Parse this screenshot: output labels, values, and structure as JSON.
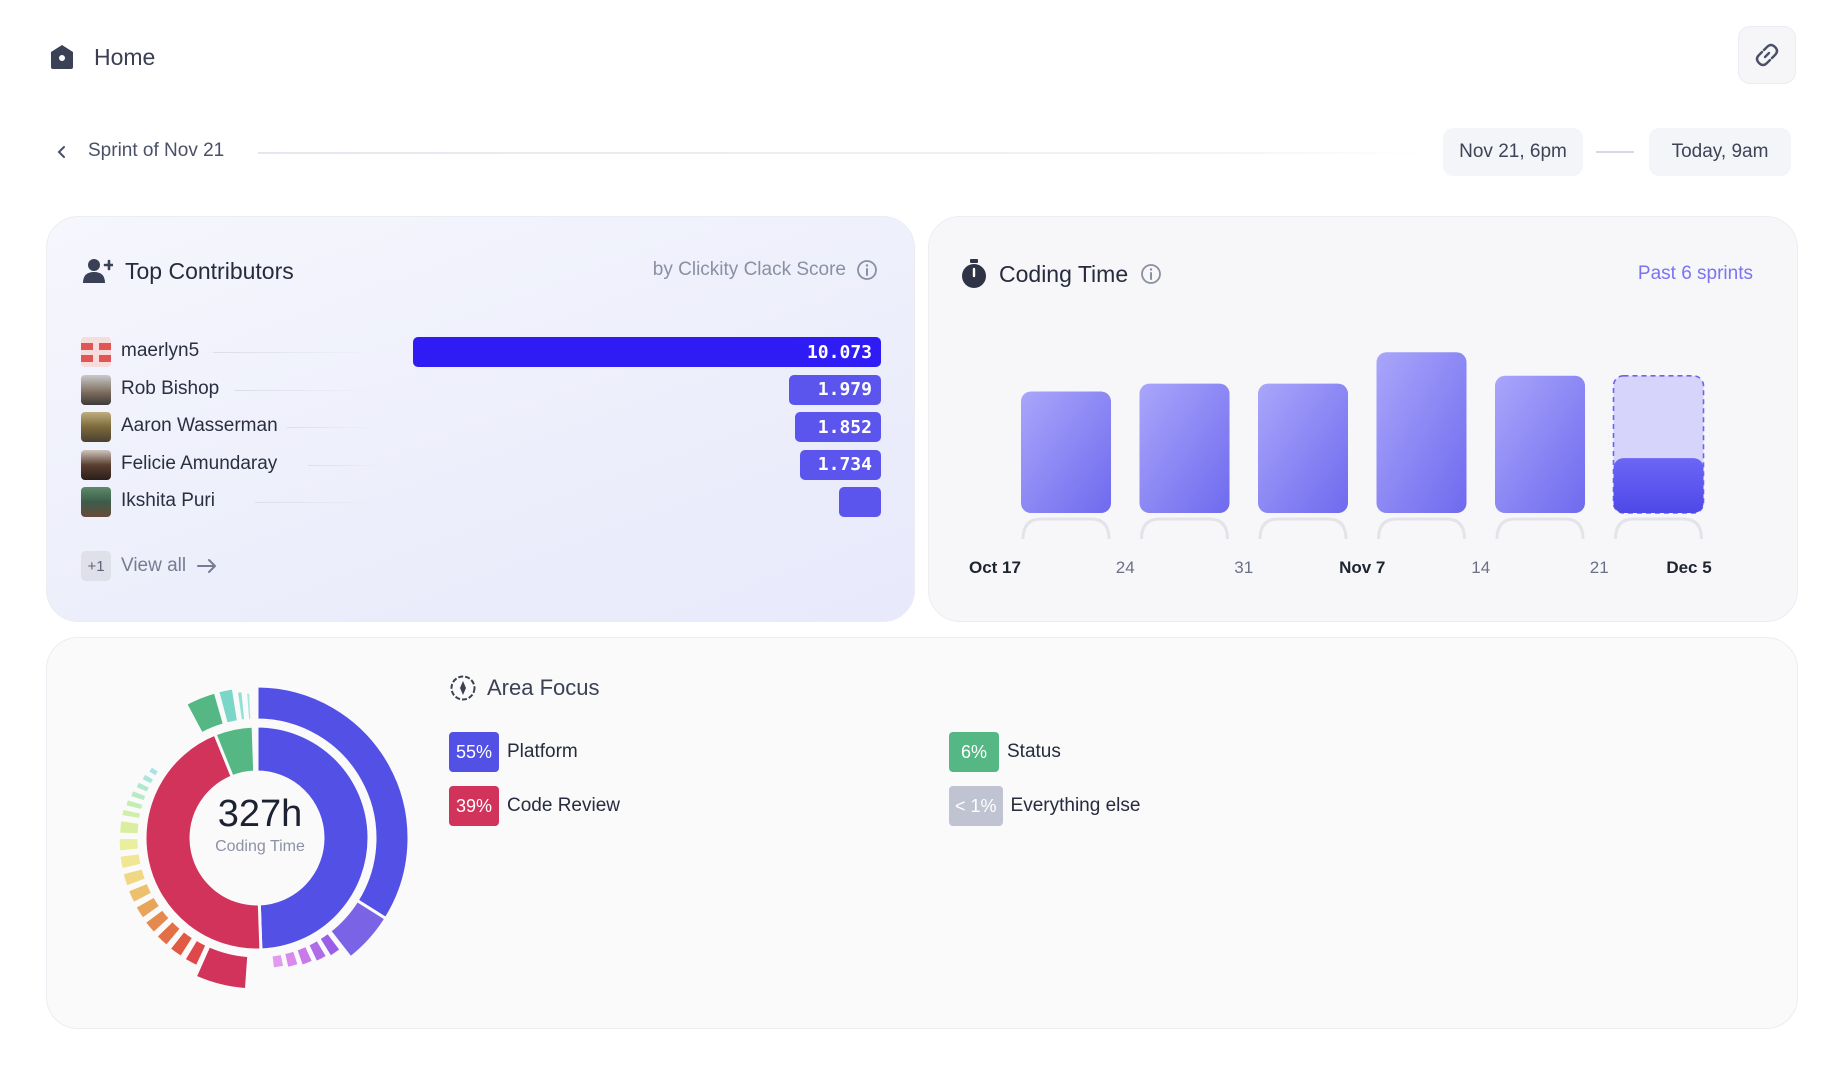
{
  "header": {
    "title": "Home"
  },
  "sprint": {
    "label": "Sprint of Nov 21",
    "start": "Nov 21, 6pm",
    "end": "Today, 9am"
  },
  "contributors": {
    "title": "Top Contributors",
    "score_label": "by Clickity Clack Score",
    "rows": [
      {
        "name": "maerlyn5",
        "score": "10.073",
        "value": 10.073
      },
      {
        "name": "Rob Bishop",
        "score": "1.979",
        "value": 1.979
      },
      {
        "name": "Aaron Wasserman",
        "score": "1.852",
        "value": 1.852
      },
      {
        "name": "Felicie Amundaray",
        "score": "1.734",
        "value": 1.734
      },
      {
        "name": "Ikshita Puri",
        "score": "",
        "value": 0.9
      }
    ],
    "more_count": "+1",
    "view_all": "View all"
  },
  "coding_time": {
    "title": "Coding Time",
    "range": "Past 6 sprints"
  },
  "chart_data": {
    "type": "bar",
    "title": "Coding Time",
    "x_labels": [
      "Oct 17",
      "24",
      "31",
      "Nov 7",
      "14",
      "21",
      "Dec 5"
    ],
    "categories": [
      "Oct 17",
      "Oct 24",
      "Oct 31",
      "Nov 7",
      "Nov 14",
      "Nov 21"
    ],
    "values": [
      62,
      66,
      66,
      82,
      70,
      28
    ],
    "projected": [
      null,
      null,
      null,
      null,
      null,
      70
    ],
    "ylim": [
      0,
      100
    ],
    "colors": {
      "bar": "#8b87f4",
      "current": "#5b55ee"
    }
  },
  "area_focus": {
    "title": "Area Focus",
    "total": "327h",
    "total_label": "Coding Time",
    "legend": [
      {
        "pct": "55%",
        "label": "Platform",
        "color": "#5350e6"
      },
      {
        "pct": "39%",
        "label": "Code Review",
        "color": "#d1335a"
      },
      {
        "pct": "6%",
        "label": "Status",
        "color": "#55b884"
      },
      {
        "pct": "< 1%",
        "label": "Everything else",
        "color": "#c0c3d2"
      }
    ]
  }
}
